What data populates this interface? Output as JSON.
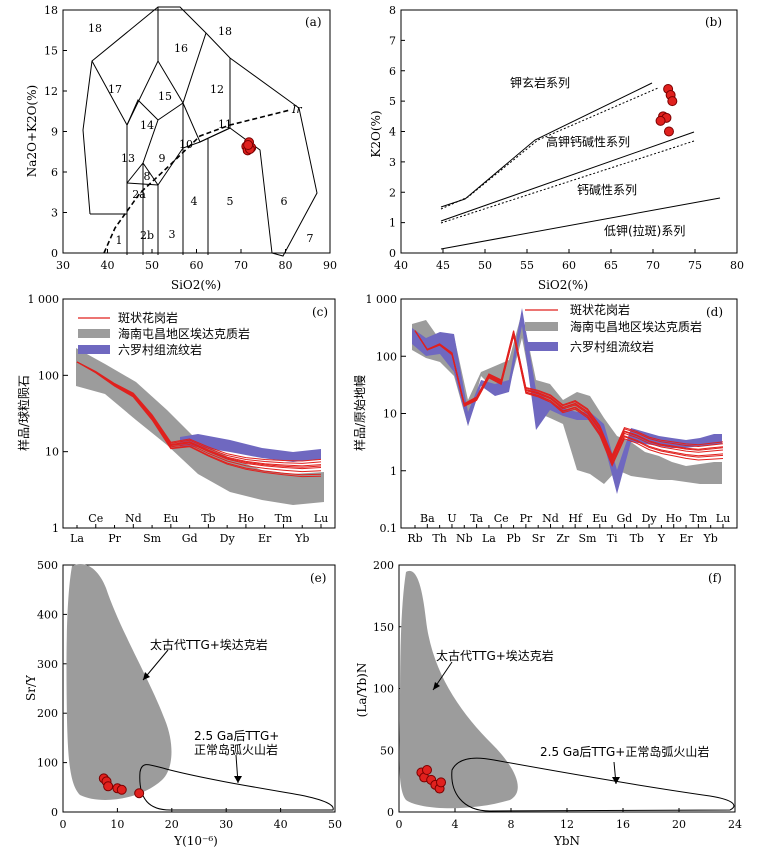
{
  "panels": {
    "a": {
      "tag": "(a)",
      "xlabel": "SiO2(%)",
      "ylabel": "Na2O+K2O(%)",
      "xticks": [
        "30",
        "40",
        "50",
        "60",
        "70",
        "80",
        "90"
      ],
      "yticks": [
        "0",
        "3",
        "6",
        "9",
        "12",
        "15",
        "18"
      ],
      "fields": [
        "18",
        "17",
        "16",
        "18",
        "15",
        "12",
        "14",
        "13",
        "9",
        "10",
        "11",
        "8",
        "2a",
        "2b",
        "1",
        "3",
        "4",
        "5",
        "6",
        "7"
      ],
      "ir": "Ir"
    },
    "b": {
      "tag": "(b)",
      "xlabel": "SiO2(%)",
      "ylabel": "K2O(%)",
      "xticks": [
        "40",
        "45",
        "50",
        "55",
        "60",
        "65",
        "70",
        "75",
        "80"
      ],
      "yticks": [
        "0",
        "1",
        "2",
        "3",
        "4",
        "5",
        "6",
        "7",
        "8"
      ],
      "series_labels": [
        "钾玄岩系列",
        "高钾钙碱性系列",
        "钙碱性系列",
        "低钾(拉斑)系列"
      ]
    },
    "c": {
      "tag": "(c)",
      "ylabel": "样品/球粒陨石",
      "yticks": [
        "1",
        "10",
        "100",
        "1 000"
      ],
      "upper_ticks": [
        "Ce",
        "Nd",
        "Eu",
        "Tb",
        "Ho",
        "Tm",
        "Lu"
      ],
      "lower_ticks": [
        "La",
        "Pr",
        "Sm",
        "Gd",
        "Dy",
        "Er",
        "Yb"
      ],
      "legend": [
        "斑状花岗岩",
        "海南屯昌地区埃达克质岩",
        "六罗村组流纹岩"
      ]
    },
    "d": {
      "tag": "(d)",
      "ylabel": "样品/原始地幔",
      "yticks": [
        "0.1",
        "1",
        "10",
        "100",
        "1 000"
      ],
      "upper_ticks": [
        "Ba",
        "U",
        "Ta",
        "Ce",
        "Pr",
        "Nd",
        "Hf",
        "Eu",
        "Gd",
        "Dy",
        "Ho",
        "Tm",
        "Lu"
      ],
      "lower_ticks": [
        "Rb",
        "Th",
        "Nb",
        "La",
        "Pb",
        "Sr",
        "Zr",
        "Sm",
        "Ti",
        "Tb",
        "Y",
        "Er",
        "Yb"
      ],
      "legend": [
        "斑状花岗岩",
        "海南屯昌地区埃达克质岩",
        "六罗村组流纹岩"
      ]
    },
    "e": {
      "tag": "(e)",
      "xlabel": "Y(10⁻⁶)",
      "ylabel": "Sr/Y",
      "xticks": [
        "0",
        "10",
        "20",
        "30",
        "40",
        "50"
      ],
      "yticks": [
        "0",
        "100",
        "200",
        "300",
        "400",
        "500"
      ],
      "label1": "太古代TTG+埃达克岩",
      "label2a": "2.5 Ga后TTG+",
      "label2b": "正常岛弧火山岩"
    },
    "f": {
      "tag": "(f)",
      "xlabel": "YbN",
      "ylabel": "(La/Yb)N",
      "xticks": [
        "0",
        "4",
        "8",
        "12",
        "16",
        "20",
        "24"
      ],
      "yticks": [
        "0",
        "50",
        "100",
        "150",
        "200"
      ],
      "label1": "太古代TTG+埃达克岩",
      "label2": "2.5 Ga后TTG+正常岛弧火山岩"
    }
  },
  "chart_data": [
    {
      "type": "scatter",
      "panel": "a",
      "xlabel": "SiO2(%)",
      "ylabel": "Na2O+K2O(%)",
      "xlim": [
        30,
        90
      ],
      "ylim": [
        0,
        18
      ],
      "x": [
        71.2,
        71.8,
        72.3,
        71.5,
        72.0,
        71.6
      ],
      "y": [
        7.9,
        8.2,
        7.8,
        7.6,
        7.7,
        8.0
      ]
    },
    {
      "type": "scatter",
      "panel": "b",
      "xlabel": "SiO2(%)",
      "ylabel": "K2O(%)",
      "xlim": [
        40,
        80
      ],
      "ylim": [
        0,
        8
      ],
      "x": [
        71.8,
        72.1,
        72.3,
        71.2,
        71.6,
        71.9,
        70.9
      ],
      "y": [
        5.4,
        5.2,
        5.0,
        4.5,
        4.45,
        4.0,
        4.35
      ]
    },
    {
      "type": "line",
      "panel": "c",
      "scale": "log",
      "categories": [
        "La",
        "Ce",
        "Pr",
        "Nd",
        "Sm",
        "Eu",
        "Gd",
        "Tb",
        "Dy",
        "Ho",
        "Er",
        "Tm",
        "Yb",
        "Lu"
      ],
      "ylim": [
        1,
        1000
      ],
      "series": [
        {
          "name": "斑状花岗岩",
          "values": [
            150,
            110,
            75,
            55,
            28,
            12,
            13,
            10,
            8,
            7,
            6.5,
            6.2,
            6.0,
            6.2
          ]
        }
      ]
    },
    {
      "type": "line",
      "panel": "d",
      "scale": "log",
      "categories": [
        "Rb",
        "Ba",
        "Th",
        "U",
        "Nb",
        "Ta",
        "La",
        "Ce",
        "Pb",
        "Pr",
        "Sr",
        "Nd",
        "Zr",
        "Hf",
        "Sm",
        "Eu",
        "Ti",
        "Gd",
        "Tb",
        "Dy",
        "Y",
        "Ho",
        "Er",
        "Tm",
        "Yb",
        "Lu"
      ],
      "ylim": [
        0.1,
        1000
      ],
      "series": [
        {
          "name": "斑状花岗岩",
          "values": [
            280,
            130,
            160,
            110,
            14,
            18,
            45,
            35,
            250,
            25,
            22,
            18,
            12,
            14,
            10,
            5,
            1.5,
            4.5,
            3.8,
            3.0,
            2.6,
            2.4,
            2.2,
            2.1,
            2.2,
            2.3
          ]
        }
      ]
    },
    {
      "type": "scatter",
      "panel": "e",
      "xlabel": "Y(10⁻⁶)",
      "ylabel": "Sr/Y",
      "xlim": [
        0,
        50
      ],
      "ylim": [
        0,
        500
      ],
      "x": [
        7.5,
        8.0,
        8.3,
        10.0,
        10.8,
        14.0
      ],
      "y": [
        68,
        62,
        52,
        48,
        45,
        38
      ]
    },
    {
      "type": "scatter",
      "panel": "f",
      "xlabel": "YbN",
      "ylabel": "(La/Yb)N",
      "xlim": [
        0,
        24
      ],
      "ylim": [
        0,
        200
      ],
      "x": [
        1.6,
        1.8,
        2.0,
        2.3,
        2.6,
        2.9,
        3.0
      ],
      "y": [
        32,
        28,
        34,
        26,
        22,
        19,
        24
      ]
    }
  ]
}
